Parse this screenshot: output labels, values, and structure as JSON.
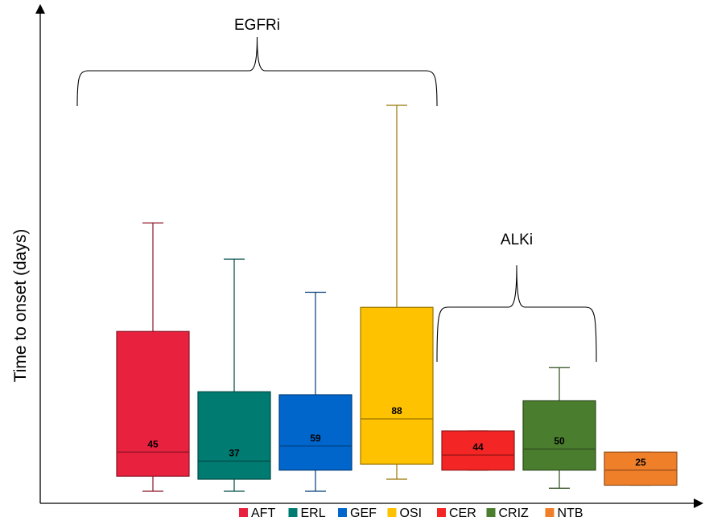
{
  "chart_data": {
    "type": "box",
    "ylabel": "Time to onset (days)",
    "xlabel": "",
    "ylim": [
      0,
      164
    ],
    "grid": false,
    "legend_position": "bottom",
    "series": [
      {
        "name": "AFT",
        "color": "#E8213F",
        "min": 4,
        "q1": 9,
        "median": 17,
        "q3": 57,
        "max": 93,
        "label": "45"
      },
      {
        "name": "ERL",
        "color": "#007B72",
        "min": 4,
        "q1": 8,
        "median": 14,
        "q3": 37,
        "max": 81,
        "label": "37"
      },
      {
        "name": "GEF",
        "color": "#0066CC",
        "min": 4,
        "q1": 11,
        "median": 19,
        "q3": 36,
        "max": 70,
        "label": "59"
      },
      {
        "name": "OSI",
        "color": "#FFC200",
        "min": 8,
        "q1": 13,
        "median": 28,
        "q3": 65,
        "max": 132,
        "label": "88"
      },
      {
        "name": "CER",
        "color": "#F42525",
        "min": 11,
        "q1": 11,
        "median": 16,
        "q3": 24,
        "max": 24,
        "label": "44"
      },
      {
        "name": "CRIZ",
        "color": "#4B7D2E",
        "min": 5,
        "q1": 11,
        "median": 18,
        "q3": 34,
        "max": 45,
        "label": "50"
      },
      {
        "name": "NTB",
        "color": "#F07F2A",
        "min": 6,
        "q1": 6,
        "median": 11,
        "q3": 17,
        "max": 17,
        "label": "25"
      }
    ],
    "groups": [
      {
        "label": "EGFRi",
        "members": [
          "AFT",
          "ERL",
          "GEF",
          "OSI"
        ]
      },
      {
        "label": "ALKi",
        "members": [
          "CER",
          "CRIZ"
        ]
      }
    ]
  }
}
